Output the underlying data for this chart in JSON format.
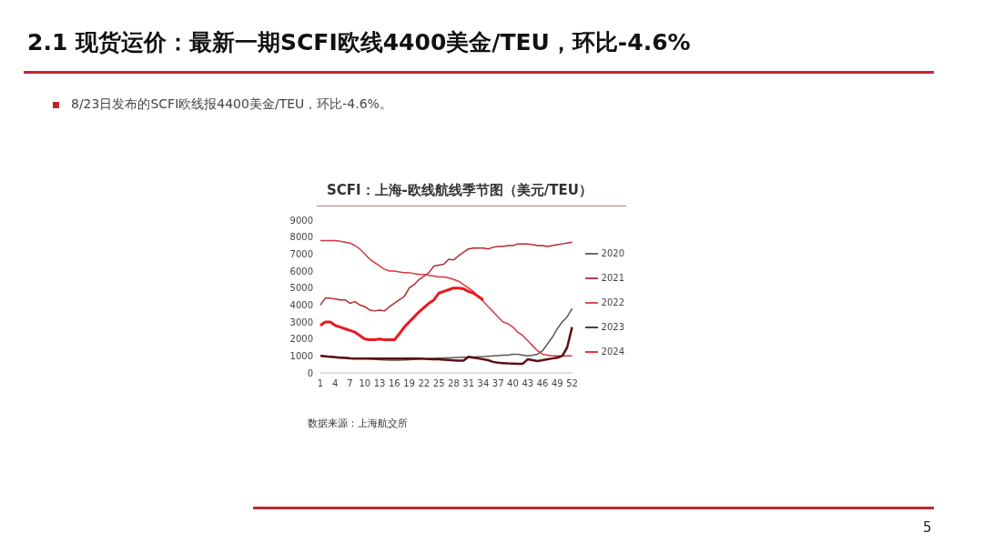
{
  "chart_data": {
    "type": "line",
    "title": "2.1 现货运价：最新一期SCFI欧线4400美金/TEU，环比-4.6%",
    "subtitle": "SCFI：上海-欧线航线季节图（美元/TEU）",
    "annotations": [
      "8/23日发布的SCFI欧线报4400美金/TEU，环比-4.6%。",
      "数据来源：上海航交所",
      "5"
    ],
    "categories": [
      "1",
      null,
      null,
      "4",
      null,
      null,
      "7",
      null,
      null,
      "10",
      null,
      null,
      "13",
      null,
      null,
      "16",
      null,
      null,
      "19",
      null,
      null,
      "22",
      null,
      null,
      "25",
      null,
      null,
      "28",
      null,
      null,
      "31",
      null,
      null,
      "34",
      null,
      null,
      "37",
      null,
      null,
      "40",
      null,
      null,
      "43",
      null,
      null,
      "46",
      null,
      null,
      "49",
      null,
      null,
      "52"
    ],
    "series": [
      {
        "name": "2020",
        "color": "#595959",
        "values": [
          1000,
          980,
          960,
          940,
          920,
          900,
          880,
          860,
          850,
          850,
          830,
          800,
          780,
          760,
          750,
          750,
          750,
          760,
          780,
          800,
          820,
          840,
          850,
          860,
          870,
          880,
          890,
          900,
          910,
          920,
          930,
          940,
          950,
          960,
          980,
          1000,
          1020,
          1040,
          1050,
          1100,
          1100,
          1050,
          1000,
          1050,
          1100,
          1300,
          1700,
          2100,
          2600,
          3000,
          3300,
          3800
        ]
      },
      {
        "name": "2021",
        "color": "#b22a2e",
        "values": [
          4000,
          4400,
          4400,
          4350,
          4300,
          4300,
          4100,
          4200,
          4000,
          3900,
          3700,
          3650,
          3700,
          3650,
          3900,
          4100,
          4300,
          4500,
          5000,
          5200,
          5500,
          5700,
          5900,
          6300,
          6350,
          6400,
          6700,
          6650,
          6900,
          7100,
          7300,
          7350,
          7350,
          7350,
          7300,
          7400,
          7450,
          7450,
          7500,
          7500,
          7600,
          7600,
          7600,
          7550,
          7500,
          7500,
          7450,
          7500,
          7550,
          7600,
          7650,
          7700
        ]
      },
      {
        "name": "2022",
        "color": "#d9363e",
        "values": [
          7800,
          7800,
          7800,
          7800,
          7750,
          7700,
          7650,
          7500,
          7300,
          7000,
          6700,
          6500,
          6300,
          6100,
          6000,
          6000,
          5950,
          5900,
          5900,
          5850,
          5800,
          5800,
          5750,
          5700,
          5650,
          5650,
          5600,
          5500,
          5400,
          5200,
          5000,
          4800,
          4500,
          4200,
          3900,
          3600,
          3300,
          3000,
          2900,
          2700,
          2400,
          2200,
          1900,
          1600,
          1300,
          1100,
          1050,
          1000,
          1000,
          1000,
          1000,
          1000
        ]
      },
      {
        "name": "2023",
        "color": "#5b0f12",
        "values": [
          1000,
          980,
          950,
          920,
          900,
          880,
          860,
          850,
          850,
          850,
          850,
          850,
          850,
          850,
          850,
          850,
          850,
          850,
          850,
          850,
          850,
          830,
          820,
          800,
          800,
          780,
          760,
          740,
          720,
          720,
          950,
          900,
          850,
          800,
          750,
          650,
          600,
          580,
          560,
          550,
          540,
          540,
          800,
          750,
          700,
          750,
          800,
          850,
          900,
          1000,
          1500,
          2700
        ]
      },
      {
        "name": "2024",
        "color": "#e8191f",
        "values": [
          2800,
          3000,
          3000,
          2800,
          2700,
          2600,
          2500,
          2400,
          2200,
          2000,
          1950,
          1950,
          2000,
          1950,
          1950,
          1950,
          2300,
          2700,
          3000,
          3300,
          3600,
          3850,
          4100,
          4300,
          4700,
          4800,
          4900,
          5000,
          5000,
          4950,
          4800,
          4700,
          4500,
          4300,
          null,
          null,
          null,
          null,
          null,
          null,
          null,
          null,
          null,
          null,
          null,
          null,
          null,
          null,
          null,
          null,
          null,
          null
        ]
      }
    ],
    "ylim": [
      0,
      9000
    ],
    "yticks": [
      0,
      1000,
      2000,
      3000,
      4000,
      5000,
      6000,
      7000,
      8000,
      9000
    ],
    "grid": false,
    "legend": "right",
    "marker": "none",
    "line_style": "solid"
  }
}
